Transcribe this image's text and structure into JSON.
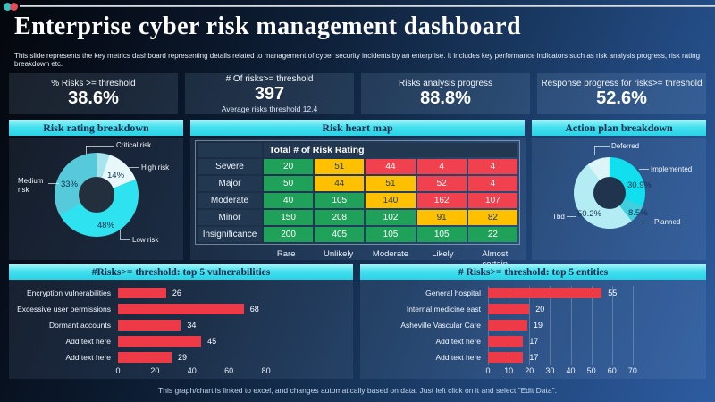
{
  "window": {
    "dot_teal": "#35c4c4",
    "dot_red": "#e34b57"
  },
  "header": {
    "title": "Enterprise cyber risk management dashboard",
    "subtitle": "This slide represents the key metrics dashboard representing details related to management  of cyber security incidents by an enterprise. It includes key performance indicators such as risk analysis progress, risk rating breakdown etc."
  },
  "kpis": [
    {
      "label": "% Risks >= threshold",
      "value": "38.6%",
      "sub": ""
    },
    {
      "label": "# Of risks>= threshold",
      "value": "397",
      "sub": "Average risks threshold 12.4"
    },
    {
      "label": "Risks analysis progress",
      "value": "88.8%",
      "sub": ""
    },
    {
      "label": "Response progress for risks>= threshold",
      "value": "52.6%",
      "sub": ""
    }
  ],
  "footer": {
    "note": "This graph/chart is linked to excel, and changes automatically based on data. Just left click on it and select \"Edit Data\"."
  },
  "chart_data": [
    {
      "id": "risk-rating-donut",
      "type": "pie",
      "donut": true,
      "title": "Risk rating breakdown",
      "legend_position": "callouts",
      "slices": [
        {
          "label": "Critical risk",
          "value": 5,
          "pct_label": "",
          "color": "#a6e4ee"
        },
        {
          "label": "High risk",
          "value": 14,
          "pct_label": "14%",
          "color": "#e8f8fa"
        },
        {
          "label": "Low risk",
          "value": 48,
          "pct_label": "48%",
          "color": "#2ee3ef"
        },
        {
          "label": "Medium risk",
          "value": 33,
          "pct_label": "33%",
          "color": "#56c9db"
        }
      ]
    },
    {
      "id": "risk-heat-map",
      "type": "heatmap",
      "title": "Risk heart map",
      "corner_header": "Total # of Risk Rating",
      "rows": [
        "Severe",
        "Major",
        "Moderate",
        "Minor",
        "Insignificance"
      ],
      "columns": [
        "Rare",
        "Unlikely",
        "Moderate",
        "Likely",
        "Almost certain"
      ],
      "values": [
        [
          20,
          51,
          44,
          4,
          4
        ],
        [
          50,
          44,
          51,
          52,
          4
        ],
        [
          40,
          105,
          140,
          162,
          107
        ],
        [
          150,
          208,
          102,
          91,
          82
        ],
        [
          200,
          405,
          105,
          105,
          22
        ]
      ],
      "cell_colors": [
        [
          "g",
          "y",
          "r",
          "r",
          "r"
        ],
        [
          "g",
          "y",
          "y",
          "r",
          "r"
        ],
        [
          "g",
          "g",
          "y",
          "r",
          "r"
        ],
        [
          "g",
          "g",
          "g",
          "y",
          "y"
        ],
        [
          "g",
          "g",
          "g",
          "g",
          "g"
        ]
      ],
      "palette": {
        "g": "#1fa15a",
        "y": "#ffc000",
        "r": "#f2414e"
      }
    },
    {
      "id": "action-plan-donut",
      "type": "pie",
      "donut": true,
      "title": "Action plan breakdown",
      "legend_position": "callouts",
      "slices": [
        {
          "label": "Implemented",
          "value": 30.9,
          "pct_label": "30.9%",
          "color": "#12dfee"
        },
        {
          "label": "Planned",
          "value": 8.5,
          "pct_label": "8.5%",
          "color": "#3fcfdf"
        },
        {
          "label": "Tbd",
          "value": 50.2,
          "pct_label": "50.2%",
          "color": "#b4ecf3"
        },
        {
          "label": "Deferred",
          "value": 10.4,
          "pct_label": "",
          "color": "#dcf5f8"
        }
      ]
    },
    {
      "id": "top-vulnerabilities-bar",
      "type": "bar",
      "title": "#Risks>= threshold: top 5 vulnerabilities",
      "orientation": "horizontal",
      "categories": [
        "Encryption vulnerabilities",
        "Excessive user permissions",
        "Dormant accounts",
        "Add text here",
        "Add text here"
      ],
      "values": [
        26,
        68,
        34,
        45,
        29
      ],
      "bar_color": "#ee3a46",
      "xlim": [
        0,
        100
      ],
      "ticks": [
        0,
        20,
        40,
        60,
        80
      ],
      "grid": false
    },
    {
      "id": "top-entities-bar",
      "type": "bar",
      "title": "# Risks>= threshold: top 5 entities",
      "orientation": "horizontal",
      "categories": [
        "General hospital",
        "Internal medicine east",
        "Asheville Vascular Care",
        "Add text here",
        "Add text here"
      ],
      "values": [
        55,
        20,
        19,
        17,
        17
      ],
      "bar_color": "#ee3a46",
      "xlim": [
        0,
        80
      ],
      "ticks": [
        0,
        10,
        20,
        30,
        40,
        50,
        60,
        70
      ],
      "grid": true
    }
  ]
}
